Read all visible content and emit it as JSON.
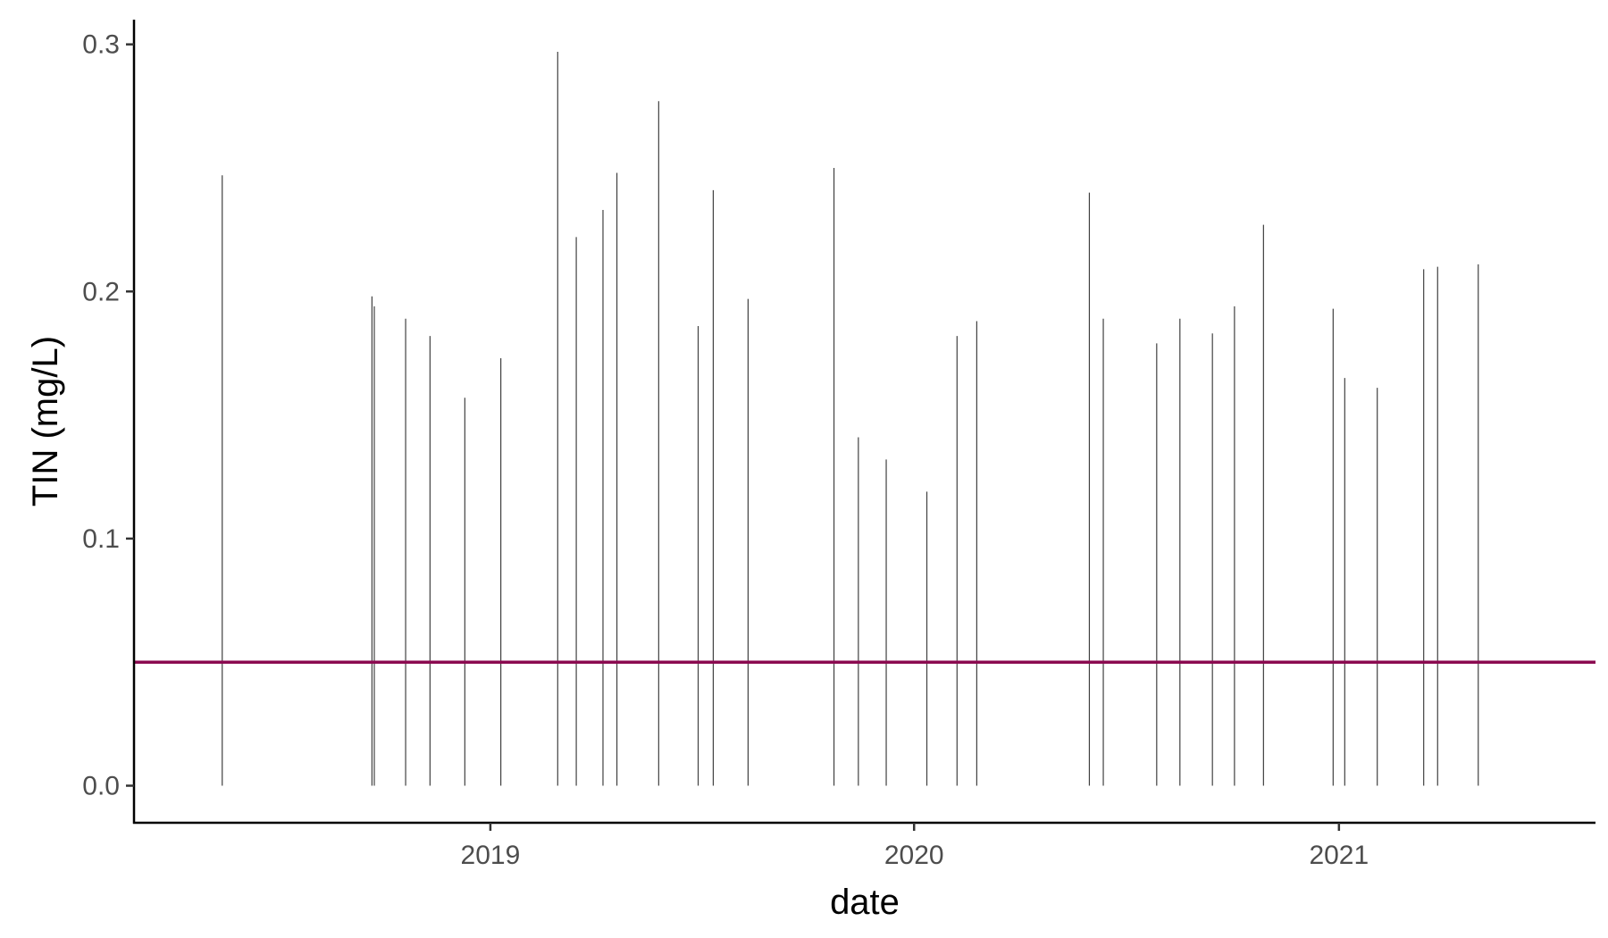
{
  "chart_data": {
    "type": "bar",
    "title": "",
    "xlabel": "date",
    "ylabel": "TIN (mg/L)",
    "xlim": [
      "2018-02-28",
      "2021-08-10"
    ],
    "ylim": [
      -0.015,
      0.31
    ],
    "x_ticks": [
      {
        "date": "2019-01-01",
        "label": "2019"
      },
      {
        "date": "2020-01-01",
        "label": "2020"
      },
      {
        "date": "2021-01-01",
        "label": "2021"
      }
    ],
    "y_ticks": [
      {
        "value": 0.0,
        "label": "0.0"
      },
      {
        "value": 0.1,
        "label": "0.1"
      },
      {
        "value": 0.2,
        "label": "0.2"
      },
      {
        "value": 0.3,
        "label": "0.3"
      }
    ],
    "reference_line": {
      "y": 0.05,
      "color": "#8B0A50"
    },
    "bar_color": "#000000",
    "grid": false,
    "legend": "none",
    "x": [
      "2018-05-15",
      "2018-09-21",
      "2018-09-23",
      "2018-10-20",
      "2018-11-10",
      "2018-12-10",
      "2019-01-10",
      "2019-02-28",
      "2019-03-16",
      "2019-04-08",
      "2019-04-20",
      "2019-05-26",
      "2019-06-29",
      "2019-07-12",
      "2019-08-11",
      "2019-10-24",
      "2019-11-14",
      "2019-12-08",
      "2020-01-12",
      "2020-02-07",
      "2020-02-24",
      "2020-05-31",
      "2020-06-12",
      "2020-07-28",
      "2020-08-17",
      "2020-09-14",
      "2020-10-03",
      "2020-10-28",
      "2020-12-27",
      "2021-01-06",
      "2021-02-03",
      "2021-03-15",
      "2021-03-27",
      "2021-05-01"
    ],
    "values": [
      0.247,
      0.198,
      0.194,
      0.189,
      0.182,
      0.157,
      0.173,
      0.297,
      0.222,
      0.233,
      0.248,
      0.277,
      0.186,
      0.241,
      0.197,
      0.25,
      0.141,
      0.132,
      0.119,
      0.182,
      0.188,
      0.24,
      0.189,
      0.179,
      0.189,
      0.183,
      0.194,
      0.227,
      0.193,
      0.165,
      0.161,
      0.209,
      0.21,
      0.211
    ]
  }
}
